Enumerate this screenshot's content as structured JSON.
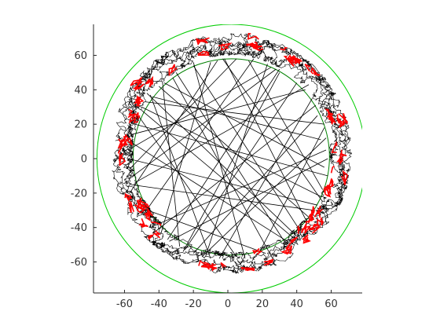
{
  "chart_data": {
    "type": "scatter",
    "title": "",
    "xlabel": "",
    "ylabel": "",
    "xlim": [
      -78,
      78
    ],
    "ylim": [
      -78,
      78
    ],
    "xticks": [
      -60,
      -40,
      -20,
      0,
      20,
      40,
      60
    ],
    "yticks": [
      -60,
      -40,
      -20,
      0,
      20,
      40,
      60
    ],
    "box": "left-bottom",
    "grid": false,
    "legend": "none",
    "circles": [
      {
        "cx": 2,
        "cy": 0,
        "r": 78,
        "color": "#00cc00"
      },
      {
        "cx": 2,
        "cy": 1,
        "r": 57,
        "color": "#008000"
      }
    ],
    "series": [
      {
        "kind": "ring-path",
        "color": "#000000",
        "ring_inner_radius": 57,
        "ring_outer_radius": 70,
        "center": [
          2,
          3
        ]
      },
      {
        "kind": "crossing-lines",
        "color": "#000000",
        "segments": [
          [
            [
              -44,
              36
            ],
            [
              54,
              11
            ]
          ],
          [
            [
              -32,
              47
            ],
            [
              26,
              -58
            ]
          ],
          [
            [
              -54,
              -14
            ],
            [
              47,
              43
            ]
          ],
          [
            [
              -10,
              56
            ],
            [
              -39,
              -44
            ]
          ],
          [
            [
              15,
              58
            ],
            [
              -48,
              -31
            ]
          ],
          [
            [
              56,
              -5
            ],
            [
              -37,
              44
            ]
          ],
          [
            [
              -57,
              10
            ],
            [
              36,
              -49
            ]
          ],
          [
            [
              -20,
              -55
            ],
            [
              52,
              25
            ]
          ],
          [
            [
              40,
              44
            ],
            [
              -25,
              -53
            ]
          ],
          [
            [
              -52,
              25
            ],
            [
              5,
              -57
            ]
          ],
          [
            [
              28,
              52
            ],
            [
              -55,
              -10
            ]
          ],
          [
            [
              54,
              -22
            ],
            [
              -50,
              30
            ]
          ],
          [
            [
              -2,
              58
            ],
            [
              46,
              -37
            ]
          ],
          [
            [
              -45,
              -40
            ],
            [
              57,
              5
            ]
          ],
          [
            [
              10,
              -58
            ],
            [
              -20,
              56
            ]
          ],
          [
            [
              -58,
              0
            ],
            [
              52,
              -27
            ]
          ],
          [
            [
              34,
              -50
            ],
            [
              -30,
              50
            ]
          ],
          [
            [
              -54,
              20
            ],
            [
              58,
              -10
            ]
          ],
          [
            [
              23,
              55
            ],
            [
              -13,
              -57
            ]
          ],
          [
            [
              -47,
              38
            ],
            [
              40,
              -45
            ]
          ],
          [
            [
              51,
              31
            ],
            [
              -43,
              -43
            ]
          ],
          [
            [
              -5,
              -58
            ],
            [
              49,
              35
            ]
          ],
          [
            [
              -28,
              -51
            ],
            [
              -38,
              45
            ]
          ],
          [
            [
              18,
              -55
            ],
            [
              56,
              18
            ]
          ],
          [
            [
              -57,
              -20
            ],
            [
              -6,
              57
            ]
          ],
          [
            [
              45,
              40
            ],
            [
              -56,
              14
            ]
          ],
          [
            [
              -35,
              -47
            ],
            [
              30,
              52
            ]
          ],
          [
            [
              58,
              0
            ],
            [
              -34,
              -48
            ]
          ],
          [
            [
              12,
              57
            ],
            [
              55,
              -18
            ]
          ],
          [
            [
              -52,
              -28
            ],
            [
              22,
              -55
            ]
          ],
          [
            [
              -40,
              42
            ],
            [
              47,
              -34
            ]
          ],
          [
            [
              5,
              58
            ],
            [
              -57,
              -6
            ]
          ],
          [
            [
              57,
              12
            ],
            [
              -15,
              -57
            ]
          ],
          [
            [
              -20,
              54
            ],
            [
              42,
              -42
            ]
          ],
          [
            [
              -58,
              5
            ],
            [
              25,
              53
            ]
          ],
          [
            [
              38,
              -46
            ],
            [
              -50,
              28
            ]
          ],
          [
            [
              -10,
              -58
            ],
            [
              -45,
              37
            ]
          ],
          [
            [
              55,
              -25
            ],
            [
              -3,
              58
            ]
          ],
          [
            [
              -57,
              -15
            ],
            [
              50,
              -30
            ]
          ],
          [
            [
              30,
              50
            ],
            [
              -26,
              -54
            ]
          ],
          [
            [
              -48,
              33
            ],
            [
              56,
              20
            ]
          ]
        ]
      },
      {
        "kind": "markers",
        "color": "#ff0000",
        "ring_inner_radius": 58,
        "ring_outer_radius": 69,
        "center": [
          2,
          3
        ]
      }
    ],
    "colors": {
      "axis": "#262626",
      "tick_text": "#333333",
      "outer_circle": "#00cc00",
      "inner_circle": "#008000",
      "path": "#000000",
      "markers": "#ff0000"
    }
  }
}
